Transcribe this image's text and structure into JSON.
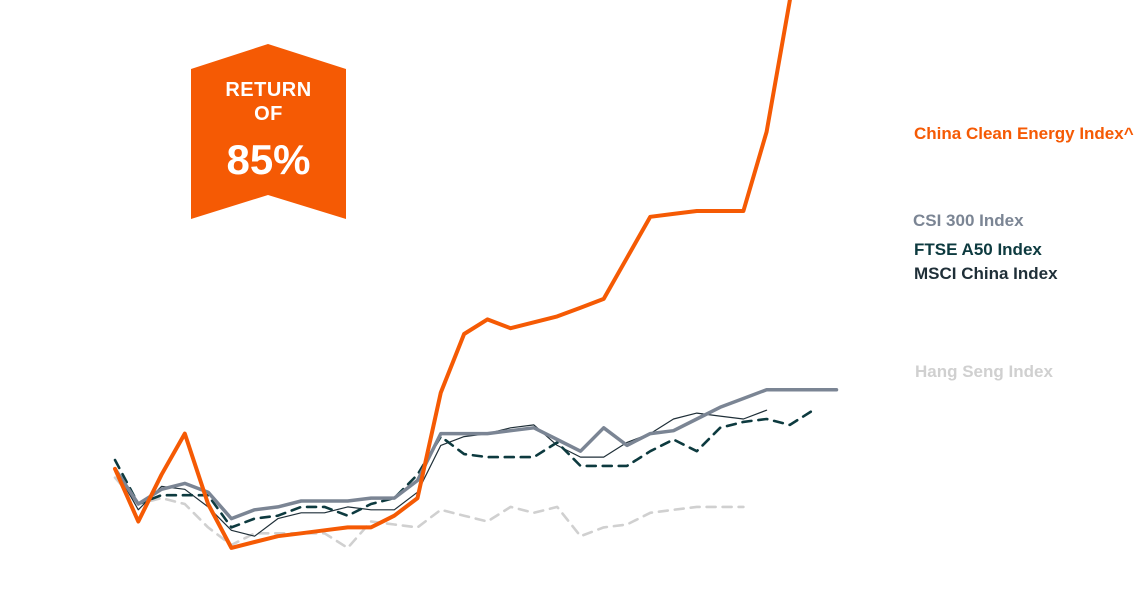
{
  "badge": {
    "line1": "RETURN",
    "line2": "OF",
    "value": "85%",
    "color": "#f55a04"
  },
  "chart_data": {
    "type": "line",
    "x": [
      1,
      2,
      3,
      4,
      5,
      6,
      7,
      8,
      9,
      10,
      11,
      12,
      13,
      14,
      15,
      16,
      17,
      18,
      19,
      20,
      21,
      22,
      23,
      24,
      25,
      26,
      27,
      28,
      29,
      30,
      31,
      32,
      33,
      34
    ],
    "xlim": [
      1,
      34
    ],
    "ylim": [
      60,
      260
    ],
    "grid": false,
    "legend": "right-inline",
    "series": [
      {
        "name": "China Clean Energy Index^",
        "color": "#f55a04",
        "style": "solid-thick",
        "values": [
          100,
          82,
          98,
          112,
          88,
          73,
          75,
          77,
          78,
          79,
          80,
          80,
          84,
          90,
          126,
          146,
          151,
          148,
          150,
          152,
          155,
          158,
          172,
          186,
          187,
          188,
          188,
          188,
          215,
          260,
          null,
          null,
          null,
          null
        ]
      },
      {
        "name": "CSI 300 Index",
        "color": "#7b8594",
        "style": "solid-medium",
        "values": [
          100,
          88,
          93,
          95,
          92,
          83,
          86,
          87,
          89,
          89,
          89,
          90,
          90,
          96,
          112,
          112,
          112,
          113,
          114,
          110,
          106,
          114,
          108,
          112,
          113,
          117,
          121,
          124,
          127,
          127,
          127,
          127,
          null,
          null
        ]
      },
      {
        "name": "FTSE A50 Index",
        "color": "#0d3a3f",
        "style": "dashed",
        "values": [
          103,
          88,
          91,
          91,
          91,
          80,
          83,
          84,
          87,
          87,
          84,
          88,
          90,
          98,
          111,
          105,
          104,
          104,
          104,
          109,
          101,
          101,
          101,
          106,
          110,
          106,
          114,
          116,
          117,
          115,
          120,
          null,
          null,
          null
        ]
      },
      {
        "name": "MSCI China Index",
        "color": "#1f2f38",
        "style": "solid-thin",
        "values": [
          100,
          86,
          94,
          93,
          87,
          79,
          77,
          83,
          85,
          85,
          87,
          86,
          86,
          92,
          108,
          111,
          112,
          114,
          115,
          108,
          104,
          104,
          109,
          112,
          117,
          119,
          118,
          117,
          120,
          null,
          null,
          null,
          null,
          null
        ]
      },
      {
        "name": "Hang Seng Index",
        "color": "#d0d0d0",
        "style": "dashed",
        "values": [
          97,
          88,
          90,
          88,
          80,
          74,
          78,
          78,
          78,
          78,
          73,
          82,
          81,
          80,
          86,
          84,
          82,
          87,
          85,
          87,
          77,
          80,
          81,
          85,
          86,
          87,
          87,
          87,
          null,
          null,
          null,
          null,
          null,
          null
        ]
      }
    ]
  }
}
